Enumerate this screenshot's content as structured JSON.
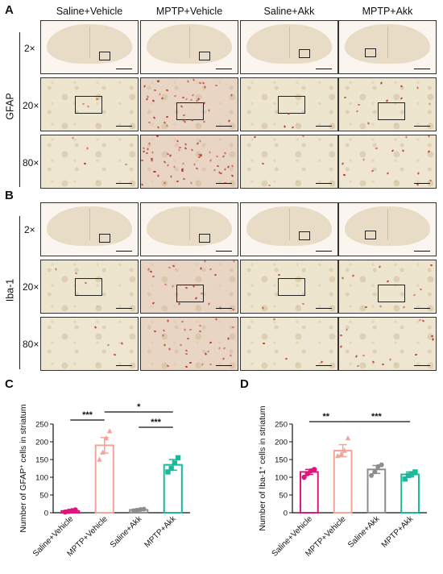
{
  "panels": {
    "A": "A",
    "B": "B",
    "C": "C",
    "D": "D"
  },
  "columns": [
    "Saline+Vehicle",
    "MPTP+Vehicle",
    "Saline+Akk",
    "MPTP+Akk"
  ],
  "magnifications": [
    "2×",
    "20×",
    "80×"
  ],
  "stains": {
    "A": "GFAP",
    "B": "Iba-1"
  },
  "colors": {
    "saline_vehicle": "#e0147a",
    "mptp_vehicle": "#f5a49a",
    "saline_akk": "#8c8c8c",
    "mptp_akk": "#1ab99a",
    "stain_red": "#b8322c"
  },
  "chart_data": [
    {
      "panel": "C",
      "type": "bar",
      "categories": [
        "Saline+Vehicle",
        "MPTP+Vehicle",
        "Saline+Akk",
        "MPTP+Akk"
      ],
      "values": [
        5,
        190,
        8,
        135
      ],
      "errors": [
        2,
        22,
        2,
        15
      ],
      "points": [
        [
          2,
          4,
          6,
          8
        ],
        [
          150,
          170,
          210,
          230
        ],
        [
          6,
          7,
          9,
          10
        ],
        [
          115,
          125,
          140,
          155
        ]
      ],
      "markers": [
        "circle",
        "triangle",
        "hexagon",
        "square"
      ],
      "ylabel_pre": "Number of GFAP",
      "ylabel_sup": "+",
      "ylabel_post": " cells in striatum",
      "ylim": [
        0,
        250
      ],
      "yticks": [
        "0",
        "50",
        "100",
        "150",
        "200",
        "250"
      ],
      "significance": [
        {
          "from": 0,
          "to": 1,
          "label": "***"
        },
        {
          "from": 1,
          "to": 3,
          "label": "*"
        },
        {
          "from": 2,
          "to": 3,
          "label": "***"
        }
      ]
    },
    {
      "panel": "D",
      "type": "bar",
      "categories": [
        "Saline+Vehicle",
        "MPTP+Vehicle",
        "Saline+Akk",
        "MPTP+Akk"
      ],
      "values": [
        115,
        175,
        122,
        108
      ],
      "errors": [
        7,
        17,
        11,
        7
      ],
      "points": [
        [
          100,
          110,
          118,
          122
        ],
        [
          160,
          165,
          175,
          210
        ],
        [
          105,
          115,
          130,
          135
        ],
        [
          95,
          105,
          110,
          115
        ]
      ],
      "markers": [
        "circle",
        "triangle",
        "hexagon",
        "square"
      ],
      "ylabel_pre": "Number of Iba-1",
      "ylabel_sup": "+",
      "ylabel_post": " cells in striatum",
      "ylim": [
        0,
        250
      ],
      "yticks": [
        "0",
        "50",
        "100",
        "150",
        "200",
        "250"
      ],
      "significance": [
        {
          "from": 0,
          "to": 1,
          "label": "**"
        },
        {
          "from": 1,
          "to": 3,
          "label": "***"
        }
      ]
    }
  ]
}
